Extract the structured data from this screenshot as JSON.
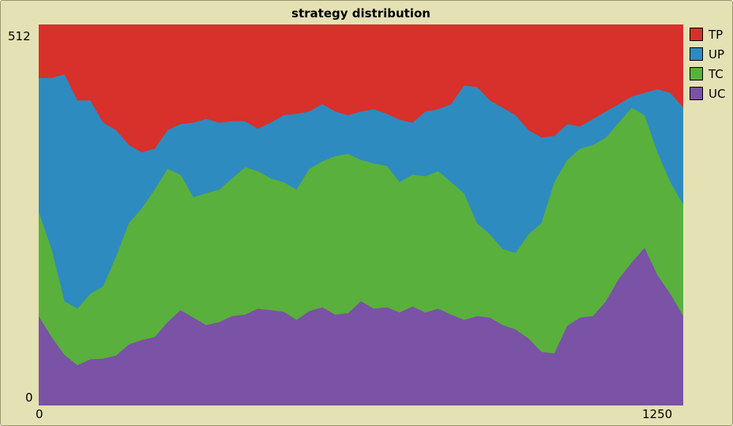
{
  "chart_data": {
    "type": "area",
    "stacked": true,
    "title": "strategy distribution",
    "xlabel": "",
    "ylabel": "",
    "xlim": [
      0,
      1250
    ],
    "ylim": [
      0,
      512
    ],
    "x_ticks": [
      "0",
      "1250"
    ],
    "y_ticks": [
      "0",
      "512"
    ],
    "legend_position": "top-right",
    "x": [
      0,
      25,
      50,
      75,
      100,
      125,
      150,
      175,
      200,
      225,
      250,
      275,
      300,
      325,
      350,
      375,
      400,
      425,
      450,
      475,
      500,
      525,
      550,
      575,
      600,
      625,
      650,
      675,
      700,
      725,
      750,
      775,
      800,
      825,
      850,
      875,
      900,
      925,
      950,
      975,
      1000,
      1025,
      1050,
      1075,
      1100,
      1125,
      1150,
      1175,
      1200,
      1225,
      1250
    ],
    "series": [
      {
        "name": "UC",
        "color": "#7a52a6",
        "values": [
          120,
          92,
          68,
          54,
          62,
          63,
          67,
          82,
          88,
          92,
          112,
          128,
          118,
          108,
          112,
          120,
          122,
          130,
          128,
          126,
          115,
          127,
          132,
          122,
          124,
          140,
          130,
          132,
          125,
          133,
          125,
          130,
          122,
          115,
          120,
          118,
          108,
          102,
          90,
          72,
          70,
          107,
          118,
          120,
          140,
          170,
          192,
          212,
          175,
          150,
          120
        ]
      },
      {
        "name": "TC",
        "color": "#59b03c",
        "values": [
          260,
          210,
          140,
          130,
          150,
          160,
          200,
          245,
          265,
          290,
          318,
          310,
          280,
          285,
          290,
          305,
          320,
          315,
          305,
          300,
          290,
          318,
          328,
          335,
          338,
          330,
          325,
          322,
          300,
          310,
          308,
          315,
          300,
          285,
          245,
          230,
          210,
          205,
          230,
          245,
          300,
          330,
          345,
          350,
          360,
          380,
          400,
          390,
          340,
          300,
          270
        ]
      },
      {
        "name": "UP",
        "color": "#2e8bbf",
        "values": [
          440,
          440,
          445,
          410,
          410,
          380,
          370,
          350,
          340,
          345,
          370,
          378,
          380,
          385,
          380,
          382,
          382,
          372,
          380,
          390,
          392,
          395,
          405,
          395,
          390,
          395,
          398,
          392,
          384,
          380,
          395,
          398,
          405,
          430,
          428,
          410,
          400,
          390,
          370,
          360,
          362,
          378,
          375,
          385,
          395,
          405,
          415,
          420,
          425,
          420,
          400
        ]
      },
      {
        "name": "TP",
        "color": "#d8302a",
        "values": [
          512,
          512,
          512,
          512,
          512,
          512,
          512,
          512,
          512,
          512,
          512,
          512,
          512,
          512,
          512,
          512,
          512,
          512,
          512,
          512,
          512,
          512,
          512,
          512,
          512,
          512,
          512,
          512,
          512,
          512,
          512,
          512,
          512,
          512,
          512,
          512,
          512,
          512,
          512,
          512,
          512,
          512,
          512,
          512,
          512,
          512,
          512,
          512,
          512,
          512,
          512
        ]
      }
    ]
  }
}
